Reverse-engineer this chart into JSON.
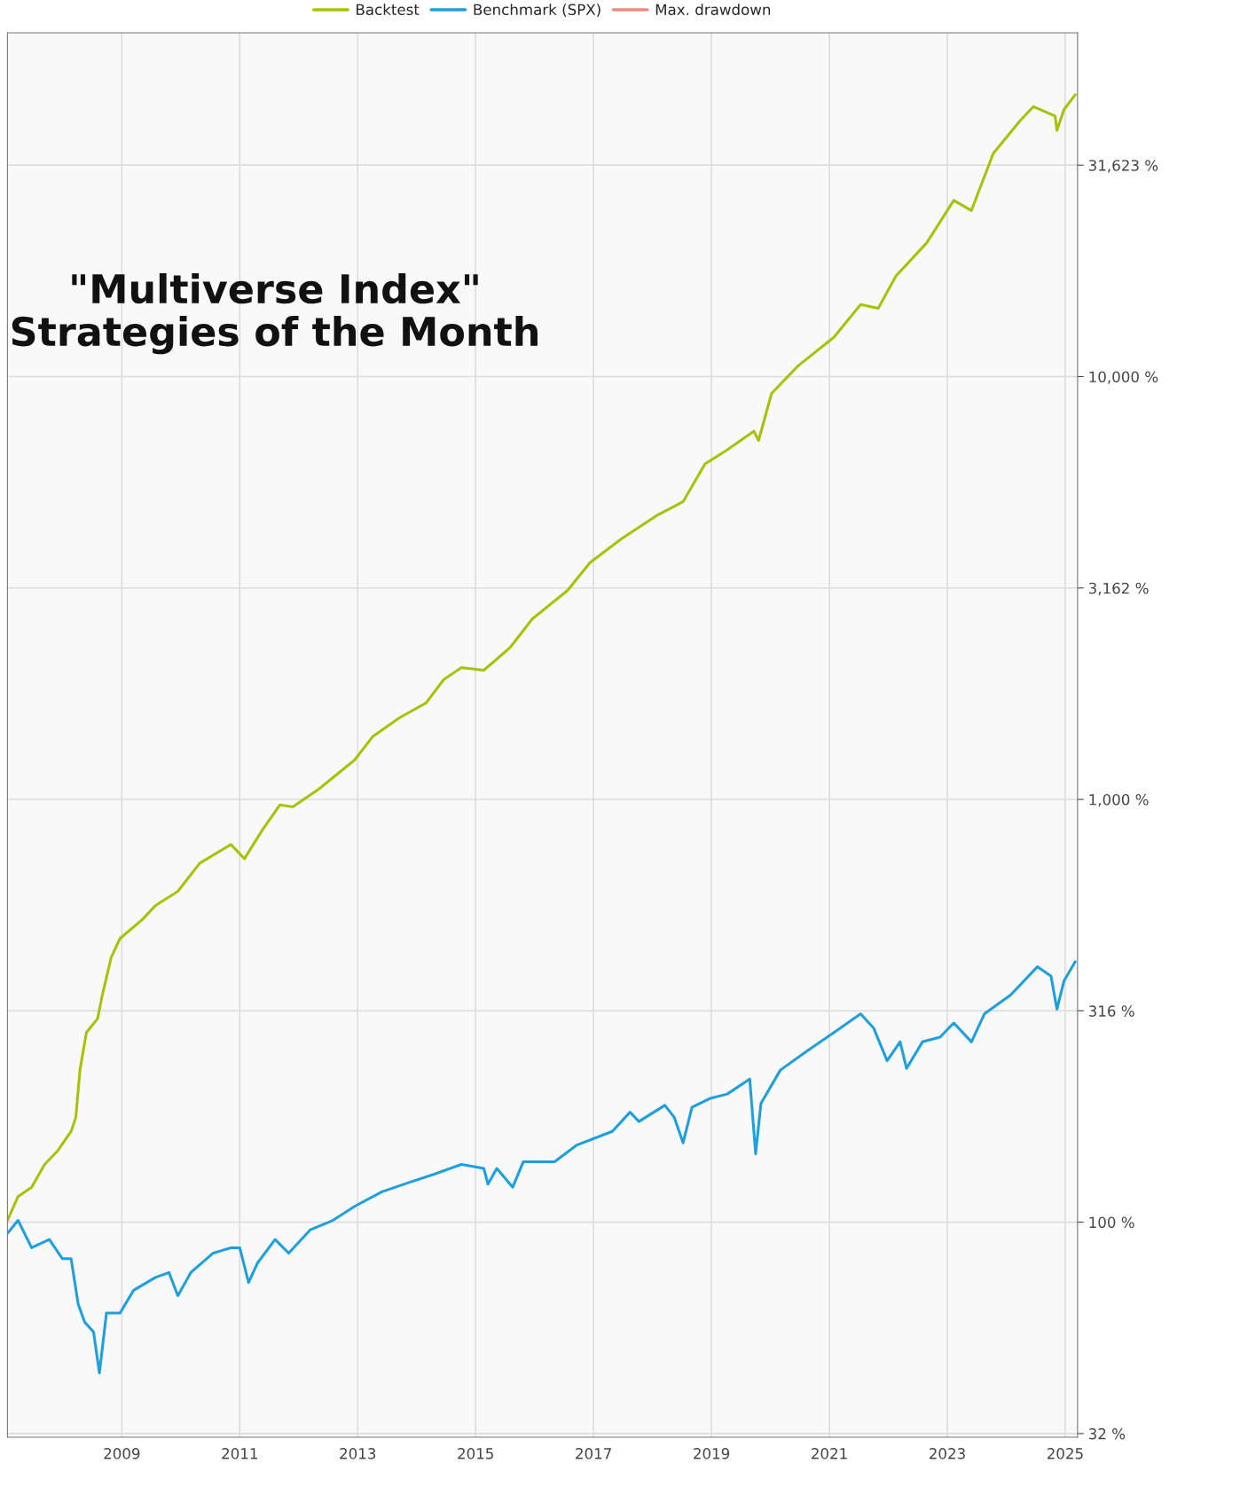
{
  "chart_data": {
    "type": "line",
    "title": "\"Multiverse Index\"\nStrategies of the Month",
    "xlim": [
      2007.06,
      2025.21
    ],
    "xticks": [
      2009,
      2011,
      2013,
      2015,
      2017,
      2019,
      2021,
      2023,
      2025
    ],
    "log": "y",
    "ylim": [
      31,
      65000
    ],
    "yticks": [
      {
        "value": 31.62,
        "label": "32 %"
      },
      {
        "value": 100,
        "label": "100 %"
      },
      {
        "value": 316.2,
        "label": "316 %"
      },
      {
        "value": 1000,
        "label": "1,000 %"
      },
      {
        "value": 3162,
        "label": "3,162 %"
      },
      {
        "value": 10000,
        "label": "10,000 %"
      },
      {
        "value": 31623,
        "label": "31,623 %"
      }
    ],
    "grid": true,
    "legend": "top",
    "line_style": "solid",
    "marker": "none",
    "series": [
      {
        "name": "Backtest",
        "color": "#a8c20a",
        "x": [
          2007.06,
          2007.24,
          2007.47,
          2007.69,
          2007.92,
          2008.14,
          2008.22,
          2008.29,
          2008.4,
          2008.59,
          2008.67,
          2008.82,
          2008.97,
          2009.35,
          2009.57,
          2009.95,
          2010.32,
          2010.85,
          2011.08,
          2011.38,
          2011.68,
          2011.9,
          2012.35,
          2012.95,
          2013.26,
          2013.71,
          2014.16,
          2014.46,
          2014.76,
          2015.14,
          2015.59,
          2015.96,
          2016.56,
          2016.94,
          2017.47,
          2018.07,
          2018.52,
          2018.89,
          2019.27,
          2019.72,
          2019.8,
          2020.02,
          2020.47,
          2021.08,
          2021.53,
          2021.83,
          2022.13,
          2022.65,
          2023.11,
          2023.41,
          2023.78,
          2024.23,
          2024.46,
          2024.83,
          2024.86,
          2024.98,
          2025.17
        ],
        "values": [
          101,
          115,
          121,
          137,
          148,
          164,
          177,
          229,
          281,
          303,
          345,
          423,
          469,
          520,
          561,
          606,
          706,
          782,
          724,
          845,
          970,
          960,
          1060,
          1240,
          1410,
          1560,
          1690,
          1920,
          2050,
          2020,
          2290,
          2670,
          3120,
          3630,
          4130,
          4690,
          5060,
          6210,
          6710,
          7430,
          7060,
          9120,
          10600,
          12400,
          14800,
          14500,
          17300,
          20700,
          26100,
          24700,
          33700,
          40200,
          43500,
          41300,
          38200,
          42800,
          46400
        ]
      },
      {
        "name": "Benchmark (SPX)",
        "color": "#1e9fe0",
        "x": [
          2007.06,
          2007.24,
          2007.47,
          2007.77,
          2007.99,
          2008.14,
          2008.26,
          2008.37,
          2008.52,
          2008.62,
          2008.74,
          2008.97,
          2009.2,
          2009.57,
          2009.8,
          2009.95,
          2010.17,
          2010.55,
          2010.85,
          2011.0,
          2011.15,
          2011.3,
          2011.6,
          2011.83,
          2012.2,
          2012.58,
          2012.95,
          2013.41,
          2013.86,
          2014.31,
          2014.76,
          2015.14,
          2015.21,
          2015.36,
          2015.63,
          2015.81,
          2016.34,
          2016.71,
          2017.32,
          2017.62,
          2017.77,
          2018.21,
          2018.37,
          2018.52,
          2018.67,
          2018.97,
          2019.27,
          2019.65,
          2019.75,
          2019.84,
          2020.17,
          2020.62,
          2021.08,
          2021.53,
          2021.75,
          2021.98,
          2022.2,
          2022.31,
          2022.58,
          2022.88,
          2023.11,
          2023.41,
          2023.63,
          2024.08,
          2024.53,
          2024.76,
          2024.86,
          2024.98,
          2025.17
        ],
        "values": [
          94,
          101,
          87,
          91,
          82,
          82,
          64,
          58,
          55,
          44,
          61,
          61,
          69,
          74,
          76,
          67,
          76,
          84.5,
          87,
          87,
          72,
          80,
          91,
          84.5,
          96,
          101,
          109,
          118,
          124,
          130,
          137,
          134,
          123,
          134,
          121,
          139,
          139,
          152,
          164,
          182,
          173,
          189,
          177,
          154,
          187,
          196,
          201,
          218,
          145,
          191,
          229,
          254,
          281,
          311,
          288,
          241,
          267,
          231,
          267,
          274,
          296,
          267,
          311,
          345,
          402,
          382,
          319,
          372,
          413
        ]
      },
      {
        "name": "Max. drawdown",
        "color": "#f08a80"
      }
    ]
  }
}
